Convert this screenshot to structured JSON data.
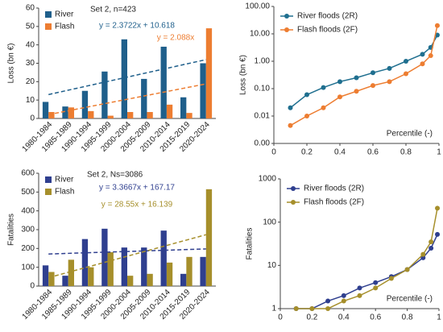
{
  "chart_data": [
    {
      "type": "bar",
      "title": "Set 2, n=423",
      "ylabel": "Loss (bn €)",
      "categories": [
        "1980-1984",
        "1985-1989",
        "1990-1994",
        "1995-1999",
        "2000-2004",
        "2005-2009",
        "2010-2014",
        "2015-2019",
        "2020-2024"
      ],
      "series": [
        {
          "name": "River",
          "color": "#1f5f8b",
          "values": [
            9,
            6.5,
            15,
            25.5,
            43,
            21.5,
            39,
            11.5,
            30
          ]
        },
        {
          "name": "Flash",
          "color": "#ed7d31",
          "values": [
            3.5,
            6,
            4,
            1.5,
            3.5,
            3.5,
            7.5,
            3,
            49
          ]
        }
      ],
      "trendlines": [
        {
          "series": 0,
          "slope": 2.3722,
          "intercept": 10.618,
          "label": "y = 2.3722x + 10.618"
        },
        {
          "series": 1,
          "slope": 2.088,
          "intercept": 0,
          "label": "y = 2.088x"
        }
      ],
      "ylim": [
        0,
        60
      ],
      "yticks": [
        0,
        10,
        20,
        30,
        40,
        50,
        60
      ],
      "legend": "upper left"
    },
    {
      "type": "line",
      "ylabel": "Loss (bn €)",
      "xlabel": "Percentile (-)",
      "log_y": true,
      "x": [
        0.1,
        0.2,
        0.3,
        0.4,
        0.5,
        0.6,
        0.7,
        0.8,
        0.9,
        0.95,
        0.99
      ],
      "series": [
        {
          "name": "River floods (2R)",
          "color": "#1f6f8f",
          "values": [
            0.02,
            0.06,
            0.11,
            0.18,
            0.25,
            0.38,
            0.55,
            1.0,
            1.8,
            3.2,
            9
          ]
        },
        {
          "name": "Flash floods (2F)",
          "color": "#ed7d31",
          "values": [
            0.0045,
            0.01,
            0.02,
            0.05,
            0.08,
            0.13,
            0.18,
            0.35,
            0.8,
            1.6,
            20
          ]
        }
      ],
      "xlim": [
        0,
        1
      ],
      "xticks": [
        0,
        0.2,
        0.4,
        0.6,
        0.8,
        1
      ],
      "ylim": [
        0.001,
        100
      ],
      "yticks": [
        {
          "value": 0.001,
          "label": "0.00"
        },
        {
          "value": 0.01,
          "label": "0.01"
        },
        {
          "value": 0.1,
          "label": "0.10"
        },
        {
          "value": 1,
          "label": "1.00"
        },
        {
          "value": 10,
          "label": "10.00"
        },
        {
          "value": 100,
          "label": "100.00"
        }
      ],
      "legend": "upper left"
    },
    {
      "type": "bar",
      "title": "Set 2, Ns=3086",
      "ylabel": "Fatalities",
      "categories": [
        "1980-1984",
        "1985-1989",
        "1990-1994",
        "1995-1999",
        "2000-2004",
        "2005-2009",
        "2010-2014",
        "2015-2019",
        "2020-2024"
      ],
      "series": [
        {
          "name": "River",
          "color": "#2f3f8f",
          "values": [
            110,
            55,
            250,
            305,
            205,
            205,
            295,
            65,
            155
          ]
        },
        {
          "name": "Flash",
          "color": "#a68f2b",
          "values": [
            75,
            140,
            100,
            180,
            55,
            65,
            125,
            155,
            515
          ]
        }
      ],
      "trendlines": [
        {
          "series": 0,
          "slope": 3.3667,
          "intercept": 167.17,
          "label": "y = 3.3667x + 167.17"
        },
        {
          "series": 1,
          "slope": 28.55,
          "intercept": 16.139,
          "label": "y = 28.55x + 16.139"
        }
      ],
      "ylim": [
        0,
        600
      ],
      "yticks": [
        0,
        100,
        200,
        300,
        400,
        500,
        600
      ],
      "legend": "upper left"
    },
    {
      "type": "line",
      "ylabel": "Fatalities",
      "xlabel": "Percentile (-)",
      "log_y": true,
      "x": [
        0.1,
        0.2,
        0.3,
        0.4,
        0.5,
        0.6,
        0.7,
        0.8,
        0.9,
        0.95,
        0.99
      ],
      "series": [
        {
          "name": "River floods (2R)",
          "color": "#2f3f8f",
          "values": [
            1,
            1,
            1.5,
            2,
            3,
            4,
            5.5,
            8,
            15,
            25,
            52
          ]
        },
        {
          "name": "Flash floods (2F)",
          "color": "#a68f2b",
          "values": [
            1,
            1,
            1,
            1.5,
            2,
            3,
            5,
            8,
            18,
            35,
            210
          ]
        }
      ],
      "xlim": [
        0,
        1
      ],
      "xticks": [
        0,
        0.2,
        0.4,
        0.6,
        0.8,
        1
      ],
      "ylim": [
        1,
        1000
      ],
      "yticks": [
        1,
        10,
        100,
        1000
      ],
      "legend": "upper left"
    }
  ]
}
